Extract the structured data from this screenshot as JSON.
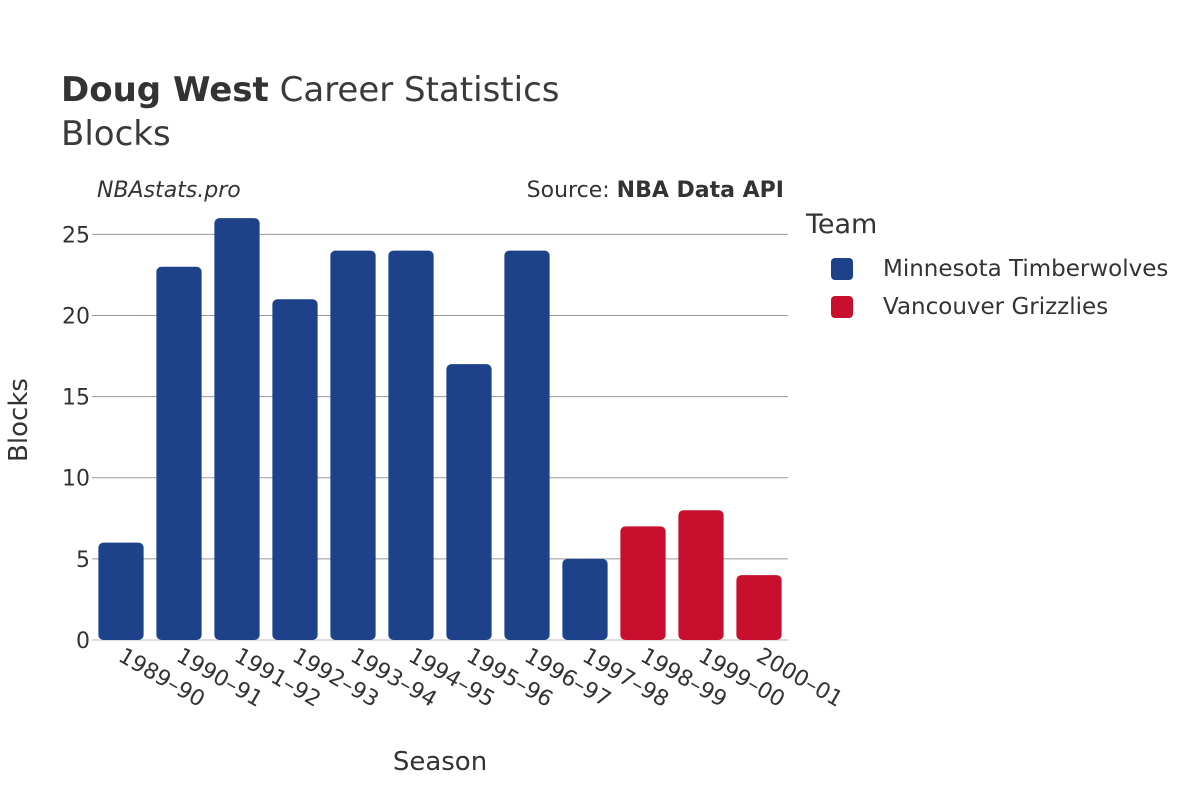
{
  "title": {
    "player": "Doug West",
    "rest": "Career Statistics",
    "subtitle": "Blocks"
  },
  "watermark": "NBAstats.pro",
  "source": {
    "prefix": "Source:",
    "name": "NBA Data API"
  },
  "legend": {
    "title": "Team",
    "items": [
      {
        "label": "Minnesota Timberwolves",
        "color": "#1d428a"
      },
      {
        "label": "Vancouver Grizzlies",
        "color": "#c8102e"
      }
    ]
  },
  "chart_data": {
    "type": "bar",
    "xlabel": "Season",
    "ylabel": "Blocks",
    "ylim": [
      0,
      26.5
    ],
    "yticks": [
      0,
      5,
      10,
      15,
      20,
      25
    ],
    "grid": true,
    "legend_position": "right",
    "categories": [
      "1989-90",
      "1990-91",
      "1991-92",
      "1992-93",
      "1993-94",
      "1994-95",
      "1995-96",
      "1996-97",
      "1997-98",
      "1998-99",
      "1999-00",
      "2000-01"
    ],
    "values": [
      6,
      23,
      26,
      21,
      24,
      24,
      17,
      24,
      5,
      7,
      8,
      4
    ],
    "teams": [
      "Minnesota Timberwolves",
      "Minnesota Timberwolves",
      "Minnesota Timberwolves",
      "Minnesota Timberwolves",
      "Minnesota Timberwolves",
      "Minnesota Timberwolves",
      "Minnesota Timberwolves",
      "Minnesota Timberwolves",
      "Minnesota Timberwolves",
      "Vancouver Grizzlies",
      "Vancouver Grizzlies",
      "Vancouver Grizzlies"
    ]
  }
}
